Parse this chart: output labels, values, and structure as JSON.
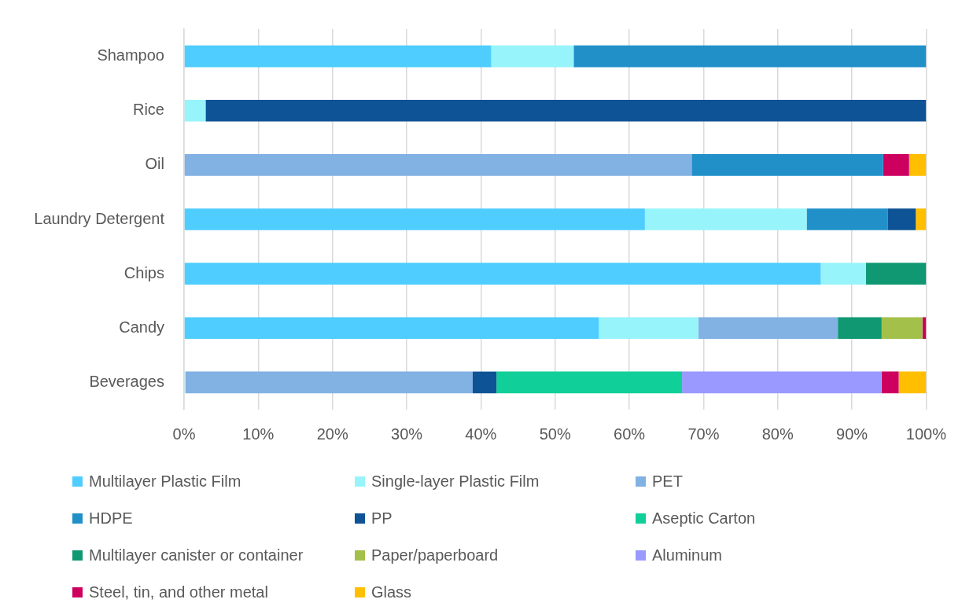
{
  "chart_data": {
    "type": "bar",
    "orientation": "horizontal",
    "stacked": true,
    "categories": [
      "Shampoo",
      "Rice",
      "Oil",
      "Laundry Detergent",
      "Chips",
      "Candy",
      "Beverages"
    ],
    "series": [
      {
        "name": "Multilayer Plastic Film",
        "color": "#4fcdff",
        "values": [
          41.4,
          null,
          null,
          62.1,
          85.8,
          55.9,
          null
        ]
      },
      {
        "name": "Single-layer Plastic Film",
        "color": "#97f4fb",
        "values": [
          11.1,
          2.9,
          null,
          21.8,
          6.1,
          13.4,
          0.2
        ]
      },
      {
        "name": "PET",
        "color": "#82b1e3",
        "values": [
          null,
          null,
          68.4,
          null,
          null,
          18.8,
          38.7
        ]
      },
      {
        "name": "HDPE",
        "color": "#2190c9",
        "values": [
          47.5,
          null,
          25.8,
          10.9,
          null,
          null,
          null
        ]
      },
      {
        "name": "PP",
        "color": "#0e5395",
        "values": [
          null,
          97.1,
          null,
          3.8,
          null,
          null,
          3.2
        ]
      },
      {
        "name": "Aseptic Carton",
        "color": "#11cf98",
        "values": [
          null,
          null,
          null,
          null,
          null,
          null,
          25.0
        ]
      },
      {
        "name": "Multilayer canister or container",
        "color": "#0f9872",
        "values": [
          null,
          null,
          null,
          null,
          8.1,
          5.9,
          null
        ]
      },
      {
        "name": "Paper/paperboard",
        "color": "#a3c04b",
        "values": [
          null,
          null,
          null,
          null,
          null,
          5.5,
          null
        ]
      },
      {
        "name": "Aluminum",
        "color": "#9999ff",
        "values": [
          null,
          null,
          null,
          null,
          null,
          null,
          26.9
        ]
      },
      {
        "name": "Steel, tin, and other metal",
        "color": "#cd0060",
        "values": [
          null,
          null,
          3.5,
          null,
          null,
          0.5,
          2.3
        ]
      },
      {
        "name": "Glass",
        "color": "#ffbf00",
        "values": [
          null,
          null,
          2.3,
          1.4,
          null,
          null,
          3.7
        ]
      }
    ],
    "xlim": [
      0,
      100
    ],
    "xticks": [
      {
        "value": 0,
        "label": "0%"
      },
      {
        "value": 10,
        "label": "10%"
      },
      {
        "value": 20,
        "label": "20%"
      },
      {
        "value": 30,
        "label": "30%"
      },
      {
        "value": 40,
        "label": "40%"
      },
      {
        "value": 50,
        "label": "50%"
      },
      {
        "value": 60,
        "label": "60%"
      },
      {
        "value": 70,
        "label": "70%"
      },
      {
        "value": 80,
        "label": "80%"
      },
      {
        "value": 90,
        "label": "90%"
      },
      {
        "value": 100,
        "label": "100%"
      }
    ],
    "grid": "x",
    "legend": "bottom"
  }
}
